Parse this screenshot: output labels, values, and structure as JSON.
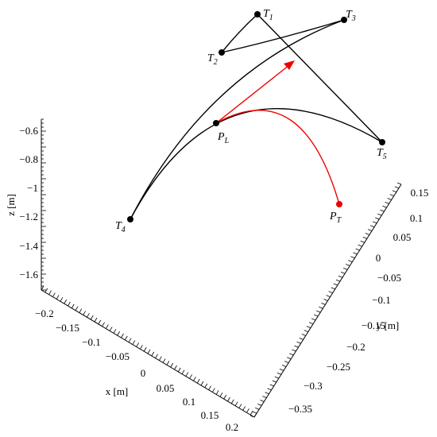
{
  "axes": {
    "z": {
      "label": "z [m]",
      "ticks": [
        "−0.6",
        "−0.8",
        "−1",
        "−1.2",
        "−1.4",
        "−1.6"
      ]
    },
    "x": {
      "label": "x [m]",
      "ticks": [
        "−0.2",
        "−0.15",
        "−0.1",
        "−0.05",
        "0",
        "0.05",
        "0.1",
        "0.15",
        "0.2"
      ]
    },
    "y": {
      "label": "y [m]",
      "ticks": [
        "0.15",
        "0.1",
        "0.05",
        "0",
        "−0.05",
        "−0.1",
        "−0.15",
        "−0.2",
        "−0.25",
        "−0.3",
        "−0.35"
      ]
    }
  },
  "points": [
    {
      "name": "T",
      "sub": "1"
    },
    {
      "name": "T",
      "sub": "2"
    },
    {
      "name": "T",
      "sub": "3"
    },
    {
      "name": "T",
      "sub": "4"
    },
    {
      "name": "T",
      "sub": "5"
    },
    {
      "name": "P",
      "sub": "L"
    },
    {
      "name": "P",
      "sub": "T"
    }
  ]
}
